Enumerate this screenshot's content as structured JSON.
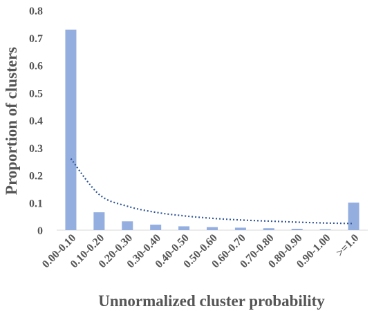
{
  "chart_data": {
    "type": "bar",
    "categories": [
      "0.00-0.10",
      "0.10-0.20",
      "0.20-0.30",
      "0.30-0.40",
      "0.40-0.50",
      "0.50-0.60",
      "0.60-0.70",
      "0.70-0.80",
      "0.80-0.90",
      "0.90-1.00",
      ">=1.0"
    ],
    "values": [
      0.73,
      0.065,
      0.032,
      0.02,
      0.014,
      0.011,
      0.009,
      0.007,
      0.005,
      0.003,
      0.1
    ],
    "trendline": {
      "type": "power",
      "values": [
        0.26,
        0.13,
        0.087,
        0.065,
        0.052,
        0.043,
        0.037,
        0.033,
        0.029,
        0.026,
        0.024
      ]
    },
    "title": "",
    "xlabel": "Unnormalized cluster probability",
    "ylabel": "Proportion of clusters",
    "ylim": [
      0,
      0.8
    ],
    "yticks": [
      "0",
      "0.1",
      "0.2",
      "0.3",
      "0.4",
      "0.5",
      "0.6",
      "0.7",
      "0.8"
    ],
    "grid": false,
    "legend": "none",
    "colors": {
      "bar": "#94aee0",
      "trendline": "#2f5597",
      "text": "#555555"
    }
  }
}
